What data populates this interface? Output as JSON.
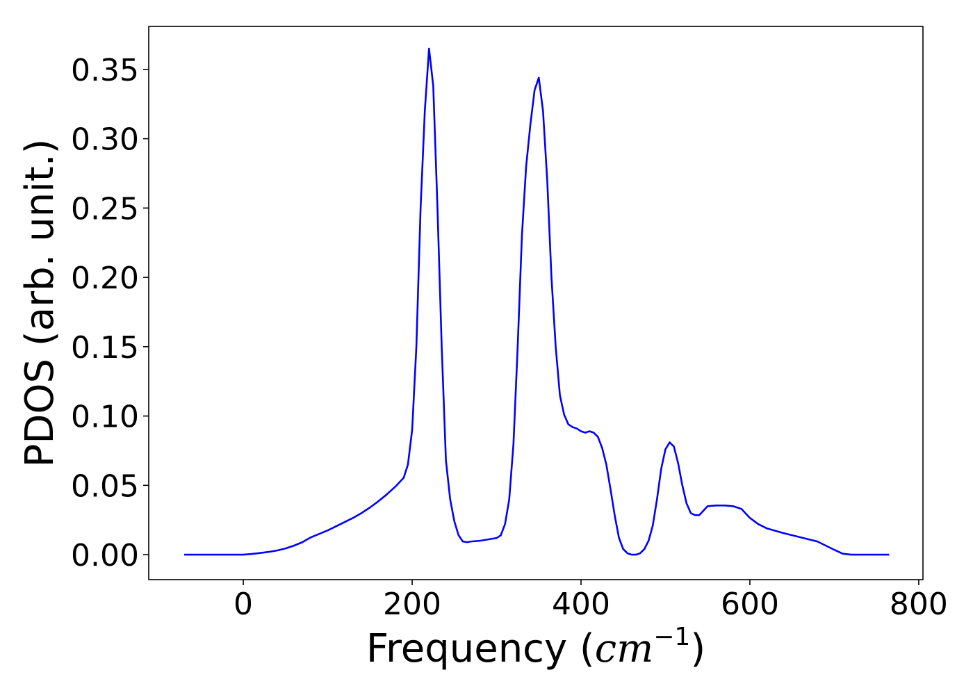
{
  "chart_data": {
    "type": "line",
    "title": "",
    "xlabel": {
      "prefix": "Frequency (",
      "unit": "cm",
      "exponent": "−1",
      "suffix": ")"
    },
    "ylabel": "PDOS (arb. unit.)",
    "xlim": [
      -112,
      805
    ],
    "ylim": [
      -0.018,
      0.381
    ],
    "xticks": [
      0,
      200,
      400,
      600,
      800
    ],
    "xtick_labels": [
      "0",
      "200",
      "400",
      "600",
      "800"
    ],
    "yticks": [
      0.0,
      0.05,
      0.1,
      0.15,
      0.2,
      0.25,
      0.3,
      0.35
    ],
    "ytick_labels": [
      "0.00",
      "0.05",
      "0.10",
      "0.15",
      "0.20",
      "0.25",
      "0.30",
      "0.35"
    ],
    "grid": false,
    "legend": "none",
    "series": [
      {
        "color": "#0000ff",
        "x": [
          -70,
          0,
          10,
          20,
          30,
          40,
          50,
          60,
          70,
          80,
          90,
          100,
          110,
          120,
          130,
          140,
          150,
          160,
          170,
          180,
          190,
          195,
          200,
          205,
          210,
          215,
          220,
          225,
          230,
          235,
          240,
          245,
          250,
          255,
          260,
          265,
          270,
          280,
          290,
          300,
          305,
          310,
          315,
          320,
          325,
          330,
          335,
          340,
          345,
          350,
          355,
          360,
          365,
          370,
          375,
          380,
          385,
          390,
          395,
          400,
          405,
          410,
          415,
          420,
          425,
          430,
          435,
          440,
          445,
          450,
          455,
          460,
          465,
          470,
          475,
          480,
          485,
          490,
          495,
          500,
          505,
          510,
          515,
          520,
          525,
          530,
          535,
          540,
          550,
          560,
          570,
          580,
          590,
          600,
          610,
          620,
          640,
          660,
          680,
          690,
          700,
          710,
          720,
          765
        ],
        "y": [
          0.0,
          0.0,
          0.0005,
          0.0012,
          0.002,
          0.003,
          0.0045,
          0.0065,
          0.009,
          0.0125,
          0.015,
          0.0175,
          0.0205,
          0.0235,
          0.0265,
          0.03,
          0.034,
          0.0385,
          0.0435,
          0.049,
          0.0555,
          0.065,
          0.09,
          0.15,
          0.25,
          0.32,
          0.365,
          0.338,
          0.25,
          0.15,
          0.068,
          0.04,
          0.024,
          0.014,
          0.0095,
          0.009,
          0.0095,
          0.01,
          0.011,
          0.012,
          0.014,
          0.022,
          0.04,
          0.08,
          0.15,
          0.23,
          0.28,
          0.31,
          0.335,
          0.344,
          0.32,
          0.27,
          0.2,
          0.15,
          0.115,
          0.101,
          0.094,
          0.092,
          0.091,
          0.089,
          0.088,
          0.089,
          0.088,
          0.085,
          0.077,
          0.065,
          0.047,
          0.028,
          0.012,
          0.004,
          0.001,
          0.0,
          0.0,
          0.001,
          0.004,
          0.01,
          0.021,
          0.04,
          0.062,
          0.076,
          0.081,
          0.078,
          0.066,
          0.05,
          0.037,
          0.03,
          0.0285,
          0.0285,
          0.035,
          0.0355,
          0.0355,
          0.035,
          0.033,
          0.0265,
          0.022,
          0.019,
          0.0155,
          0.0125,
          0.0095,
          0.0065,
          0.0035,
          0.0007,
          0.0,
          0.0
        ]
      }
    ]
  }
}
